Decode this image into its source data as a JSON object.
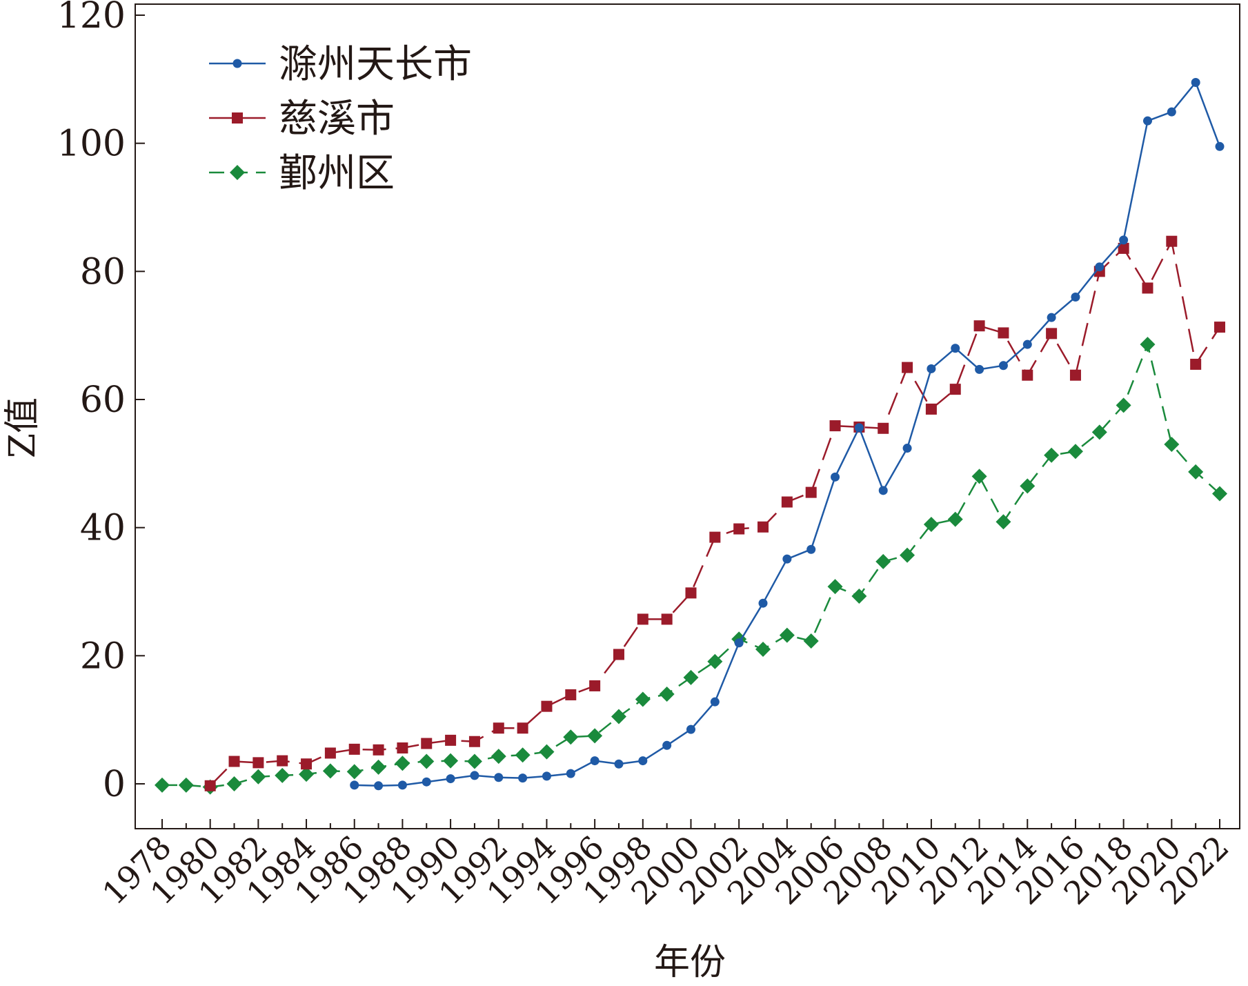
{
  "chart_data": {
    "type": "line",
    "title": "",
    "xlabel": "年份",
    "ylabel": "Z值",
    "ylim": [
      -7,
      120
    ],
    "xlim": [
      1978,
      2022
    ],
    "y_ticks": [
      "0",
      "20",
      "40",
      "60",
      "80",
      "100",
      "120"
    ],
    "x_ticks": [
      "1978",
      "1980",
      "1982",
      "1984",
      "1986",
      "1988",
      "1990",
      "1992",
      "1994",
      "1996",
      "1998",
      "2000",
      "2002",
      "2004",
      "2006",
      "2008",
      "2010",
      "2012",
      "2014",
      "2016",
      "2018",
      "2020",
      "2022"
    ],
    "grid": false,
    "legend_position": "top-left",
    "series": [
      {
        "name": "滁州天长市",
        "color": "#1f5aa6",
        "marker": "circle",
        "line_style": "solid",
        "x": [
          1986,
          1987,
          1988,
          1989,
          1990,
          1991,
          1992,
          1993,
          1994,
          1995,
          1996,
          1997,
          1998,
          1999,
          2000,
          2001,
          2002,
          2003,
          2004,
          2005,
          2006,
          2007,
          2008,
          2009,
          2010,
          2011,
          2012,
          2013,
          2014,
          2015,
          2016,
          2017,
          2018,
          2019,
          2020,
          2021,
          2022
        ],
        "values": [
          -0.2,
          -0.3,
          -0.2,
          0.3,
          0.8,
          1.3,
          1.0,
          0.9,
          1.2,
          1.6,
          3.6,
          3.1,
          3.6,
          6.0,
          8.5,
          12.8,
          22.0,
          28.2,
          35.1,
          36.6,
          47.9,
          55.6,
          45.8,
          52.4,
          64.8,
          68.0,
          64.7,
          65.3,
          68.6,
          72.8,
          76.0,
          80.7,
          84.9,
          103.5,
          104.9,
          109.5,
          99.5
        ]
      },
      {
        "name": "慈溪市",
        "color": "#9b1b2a",
        "marker": "square",
        "line_style": "long-dash",
        "x": [
          1980,
          1981,
          1982,
          1983,
          1984,
          1985,
          1986,
          1987,
          1988,
          1989,
          1990,
          1991,
          1992,
          1993,
          1994,
          1995,
          1996,
          1997,
          1998,
          1999,
          2000,
          2001,
          2002,
          2003,
          2004,
          2005,
          2006,
          2007,
          2008,
          2009,
          2010,
          2011,
          2012,
          2013,
          2014,
          2015,
          2016,
          2017,
          2018,
          2019,
          2020,
          2021,
          2022
        ],
        "values": [
          -0.3,
          3.5,
          3.3,
          3.6,
          3.1,
          4.8,
          5.4,
          5.3,
          5.6,
          6.3,
          6.8,
          6.6,
          8.7,
          8.7,
          12.1,
          13.9,
          15.3,
          20.2,
          25.7,
          25.7,
          29.8,
          38.5,
          39.8,
          40.1,
          44.0,
          45.5,
          55.9,
          55.7,
          55.5,
          65.0,
          58.5,
          61.6,
          71.5,
          70.4,
          63.8,
          70.3,
          63.8,
          80.0,
          83.6,
          77.4,
          84.7,
          65.5,
          71.3
        ]
      },
      {
        "name": "鄞州区",
        "color": "#1a8a3c",
        "marker": "diamond",
        "line_style": "dashed",
        "x": [
          1978,
          1979,
          1980,
          1981,
          1982,
          1983,
          1984,
          1985,
          1986,
          1987,
          1988,
          1989,
          1990,
          1991,
          1992,
          1993,
          1994,
          1995,
          1996,
          1997,
          1998,
          1999,
          2000,
          2001,
          2002,
          2003,
          2004,
          2005,
          2006,
          2007,
          2008,
          2009,
          2010,
          2011,
          2012,
          2013,
          2014,
          2015,
          2016,
          2017,
          2018,
          2019,
          2020,
          2021,
          2022
        ],
        "values": [
          -0.2,
          -0.2,
          -0.5,
          0.0,
          1.1,
          1.3,
          1.5,
          2.0,
          1.9,
          2.6,
          3.2,
          3.5,
          3.6,
          3.5,
          4.3,
          4.5,
          5.0,
          7.3,
          7.5,
          10.5,
          13.2,
          14.0,
          16.6,
          19.1,
          22.6,
          21.0,
          23.2,
          22.3,
          30.8,
          29.3,
          34.7,
          35.7,
          40.5,
          41.3,
          48.0,
          40.9,
          46.5,
          51.3,
          51.9,
          54.9,
          59.1,
          68.6,
          53.0,
          48.7,
          45.3
        ]
      }
    ]
  }
}
